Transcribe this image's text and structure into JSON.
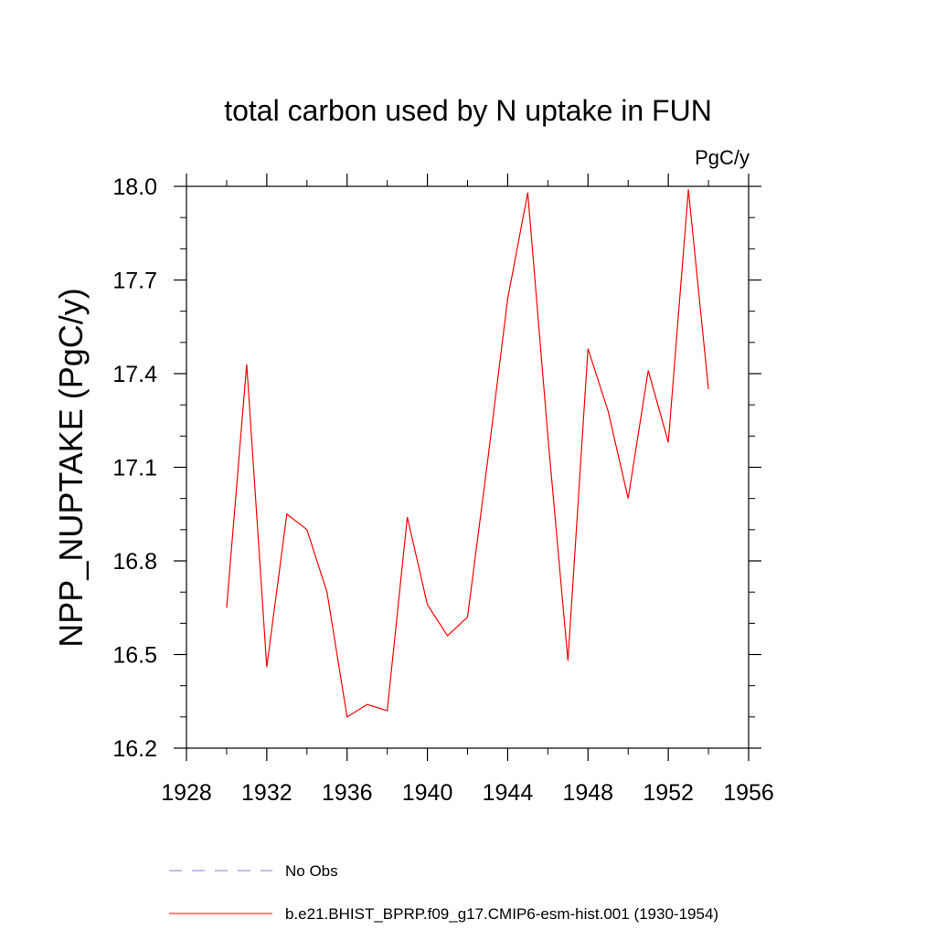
{
  "chart_data": {
    "type": "line",
    "title": "total carbon used by N uptake in FUN",
    "units_label": "PgC/y",
    "ylabel": "NPP_NUPTAKE  (PgC/y)",
    "xlabel": "",
    "xlim": [
      1928,
      1956
    ],
    "ylim": [
      16.2,
      18.0
    ],
    "x_ticks": [
      "1928",
      "1932",
      "1936",
      "1940",
      "1944",
      "1948",
      "1952",
      "1956"
    ],
    "y_ticks": [
      "16.2",
      "16.5",
      "16.8",
      "17.1",
      "17.4",
      "17.7",
      "18.0"
    ],
    "grid": false,
    "legend_position": "bottom",
    "series": [
      {
        "name": "No Obs",
        "color": "#7b7bd9",
        "style": "dashed",
        "x": [],
        "values": []
      },
      {
        "name": "b.e21.BHIST_BPRP.f09_g17.CMIP6-esm-hist.001 (1930-1954)",
        "color": "#ff0000",
        "style": "solid",
        "x": [
          1930,
          1931,
          1932,
          1933,
          1934,
          1935,
          1936,
          1937,
          1938,
          1939,
          1940,
          1941,
          1942,
          1943,
          1944,
          1945,
          1946,
          1947,
          1948,
          1949,
          1950,
          1951,
          1952,
          1953,
          1954
        ],
        "values": [
          16.65,
          17.43,
          16.46,
          16.95,
          16.9,
          16.7,
          16.3,
          16.34,
          16.32,
          16.94,
          16.66,
          16.56,
          16.62,
          17.12,
          17.64,
          17.98,
          17.2,
          16.48,
          17.48,
          17.28,
          17.0,
          17.41,
          17.18,
          17.99,
          17.35
        ]
      }
    ]
  }
}
